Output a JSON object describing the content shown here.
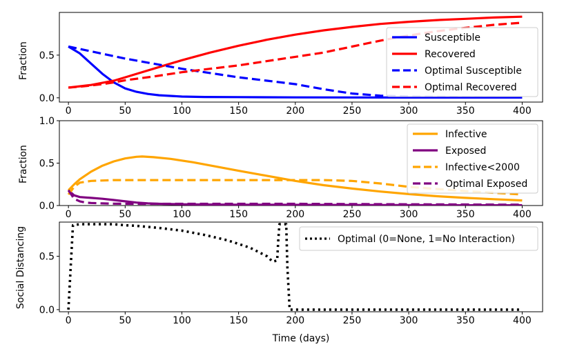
{
  "chart_data": [
    {
      "type": "line",
      "ylabel": "Fraction",
      "xlim": [
        -8,
        418
      ],
      "ylim": [
        -0.05,
        1.0
      ],
      "xticks": [
        0,
        50,
        100,
        150,
        200,
        250,
        300,
        350,
        400
      ],
      "yticks": [
        0.0,
        0.5
      ],
      "legend_position": "right",
      "series": [
        {
          "name": "Susceptible",
          "color": "#0000ff",
          "dash": "solid",
          "x": [
            0,
            10,
            20,
            30,
            40,
            50,
            60,
            70,
            80,
            100,
            120,
            150,
            200,
            250,
            300,
            350,
            400
          ],
          "y": [
            0.6,
            0.52,
            0.4,
            0.28,
            0.18,
            0.11,
            0.07,
            0.045,
            0.03,
            0.015,
            0.01,
            0.008,
            0.005,
            0.004,
            0.003,
            0.003,
            0.003
          ]
        },
        {
          "name": "Recovered",
          "color": "#ff0000",
          "dash": "solid",
          "x": [
            0,
            10,
            20,
            30,
            40,
            50,
            60,
            80,
            100,
            125,
            150,
            175,
            200,
            225,
            250,
            275,
            300,
            325,
            350,
            375,
            400
          ],
          "y": [
            0.12,
            0.135,
            0.15,
            0.175,
            0.2,
            0.24,
            0.28,
            0.36,
            0.44,
            0.53,
            0.61,
            0.68,
            0.74,
            0.79,
            0.83,
            0.865,
            0.89,
            0.91,
            0.925,
            0.94,
            0.95
          ]
        },
        {
          "name": "Optimal Susceptible",
          "color": "#0000ff",
          "dash": "dashed",
          "x": [
            0,
            25,
            50,
            75,
            100,
            125,
            150,
            175,
            200,
            225,
            250,
            275,
            300,
            350,
            400
          ],
          "y": [
            0.6,
            0.53,
            0.46,
            0.4,
            0.34,
            0.29,
            0.24,
            0.2,
            0.16,
            0.1,
            0.05,
            0.025,
            0.015,
            0.008,
            0.005
          ]
        },
        {
          "name": "Optimal Recovered",
          "color": "#ff0000",
          "dash": "dashed",
          "x": [
            0,
            10,
            20,
            30,
            40,
            50,
            75,
            100,
            125,
            150,
            175,
            200,
            225,
            250,
            275,
            300,
            325,
            350,
            375,
            400
          ],
          "y": [
            0.12,
            0.13,
            0.145,
            0.16,
            0.18,
            0.205,
            0.25,
            0.3,
            0.34,
            0.38,
            0.43,
            0.48,
            0.53,
            0.6,
            0.67,
            0.73,
            0.78,
            0.82,
            0.855,
            0.88
          ]
        }
      ]
    },
    {
      "type": "line",
      "ylabel": "Fraction",
      "xlim": [
        -8,
        418
      ],
      "ylim": [
        0.0,
        1.0
      ],
      "xticks": [
        0,
        50,
        100,
        150,
        200,
        250,
        300,
        350,
        400
      ],
      "yticks": [
        0.0,
        0.5,
        1.0
      ],
      "legend_position": "upper right",
      "series": [
        {
          "name": "Infective",
          "color": "#ffa500",
          "dash": "solid",
          "x": [
            0,
            5,
            10,
            20,
            30,
            40,
            50,
            60,
            65,
            75,
            90,
            110,
            130,
            150,
            175,
            200,
            225,
            250,
            275,
            300,
            325,
            350,
            375,
            400
          ],
          "y": [
            0.18,
            0.25,
            0.31,
            0.4,
            0.47,
            0.52,
            0.555,
            0.575,
            0.578,
            0.57,
            0.55,
            0.51,
            0.46,
            0.41,
            0.35,
            0.29,
            0.24,
            0.2,
            0.165,
            0.135,
            0.11,
            0.09,
            0.075,
            0.06
          ]
        },
        {
          "name": "Exposed",
          "color": "#800080",
          "dash": "solid",
          "x": [
            0,
            5,
            10,
            20,
            30,
            40,
            50,
            60,
            70,
            80,
            100,
            150,
            200,
            300,
            400
          ],
          "y": [
            0.18,
            0.12,
            0.1,
            0.09,
            0.08,
            0.065,
            0.05,
            0.035,
            0.025,
            0.02,
            0.015,
            0.01,
            0.008,
            0.005,
            0.003
          ]
        },
        {
          "name": "Infective<2000",
          "color": "#ffa500",
          "dash": "dashed",
          "x": [
            0,
            5,
            10,
            20,
            40,
            60,
            100,
            150,
            200,
            225,
            250,
            275,
            300,
            350,
            400
          ],
          "y": [
            0.13,
            0.22,
            0.27,
            0.29,
            0.3,
            0.3,
            0.3,
            0.3,
            0.3,
            0.3,
            0.29,
            0.26,
            0.22,
            0.17,
            0.13
          ]
        },
        {
          "name": "Optimal Exposed",
          "color": "#800080",
          "dash": "dashed",
          "x": [
            0,
            5,
            10,
            15,
            20,
            30,
            40,
            60,
            100,
            150,
            200,
            300,
            400
          ],
          "y": [
            0.18,
            0.08,
            0.05,
            0.035,
            0.03,
            0.025,
            0.022,
            0.02,
            0.02,
            0.02,
            0.02,
            0.015,
            0.01
          ]
        }
      ]
    },
    {
      "type": "line",
      "ylabel": "Social Distancing",
      "xlabel": "Time (days)",
      "xlim": [
        -8,
        418
      ],
      "ylim": [
        -0.02,
        0.82
      ],
      "xticks": [
        0,
        50,
        100,
        150,
        200,
        250,
        300,
        350,
        400
      ],
      "yticks": [
        0.0,
        0.5
      ],
      "legend_position": "upper right",
      "series": [
        {
          "name": "Optimal (0=None, 1=No Interaction)",
          "color": "#000000",
          "dash": "dotted",
          "x": [
            0,
            2,
            4,
            10,
            20,
            30,
            40,
            50,
            60,
            80,
            100,
            120,
            140,
            160,
            175,
            180,
            184,
            185,
            186,
            190,
            192,
            193,
            195,
            250,
            300,
            350,
            400
          ],
          "y": [
            0.0,
            0.4,
            0.79,
            0.8,
            0.8,
            0.8,
            0.8,
            0.79,
            0.785,
            0.765,
            0.74,
            0.7,
            0.65,
            0.58,
            0.5,
            0.45,
            0.46,
            0.65,
            0.8,
            0.8,
            0.8,
            0.4,
            0.0,
            0.0,
            0.0,
            0.0,
            0.0
          ]
        }
      ]
    }
  ]
}
